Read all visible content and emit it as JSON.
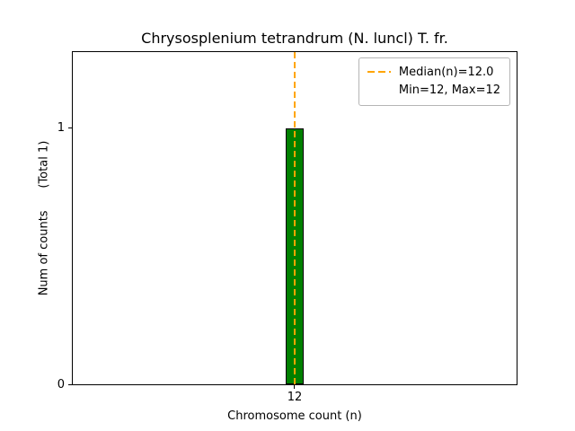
{
  "chart_data": {
    "type": "bar",
    "title": "Chrysosplenium tetrandrum (N. luncl) T. fr.",
    "xlabel": "Chromosome count (n)",
    "ylabel": "Num of counts      (Total 1)",
    "categories": [
      12
    ],
    "values": [
      1
    ],
    "total": 1,
    "xtick_labels": [
      "12"
    ],
    "ytick_labels": [
      "0",
      "1"
    ],
    "ylim": [
      0,
      1.3
    ],
    "bar_color": "#008000",
    "bar_edge_color": "#000000",
    "median_line": {
      "x": 12,
      "color": "#ffa500",
      "style": "dashed"
    },
    "legend": {
      "position": "upper right",
      "entries": [
        "Median(n)=12.0",
        "Min=12, Max=12"
      ]
    },
    "stats": {
      "median": 12.0,
      "min": 12,
      "max": 12
    },
    "grid": false
  }
}
